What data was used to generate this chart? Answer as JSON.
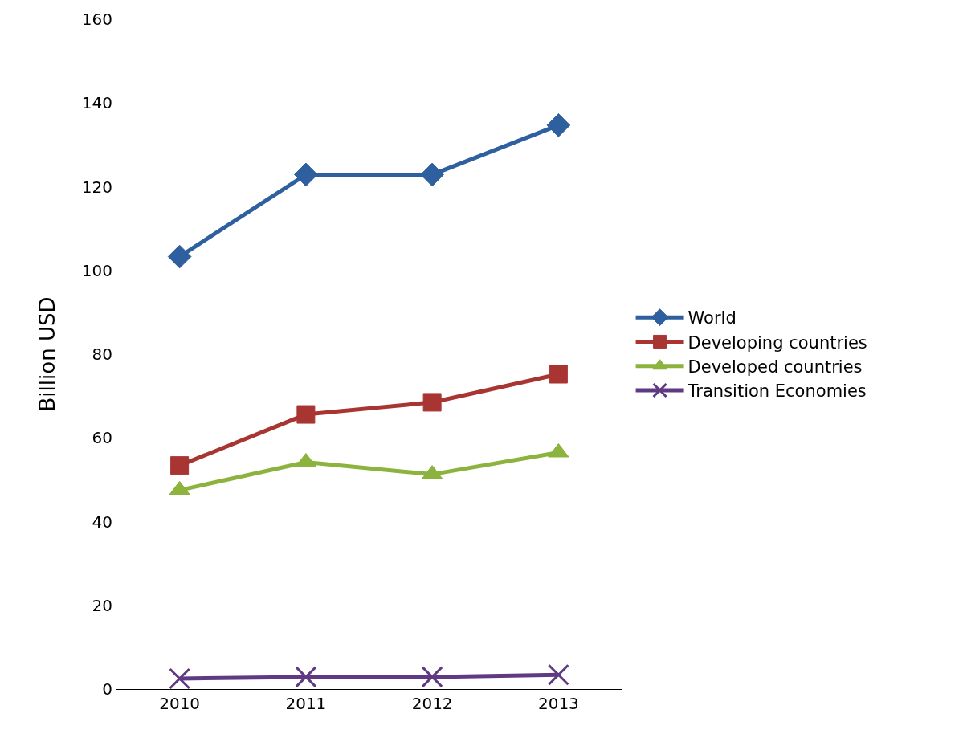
{
  "chart_data": {
    "type": "line",
    "ylabel": "Billion USD",
    "categories": [
      "2010",
      "2011",
      "2012",
      "2013"
    ],
    "series": [
      {
        "name": "World",
        "color": "#2e5f9e",
        "marker": "diamond",
        "values": [
          103.3,
          122.9,
          122.9,
          134.7
        ]
      },
      {
        "name": "Developing countries",
        "color": "#a93532",
        "marker": "square",
        "values": [
          53.4,
          65.6,
          68.5,
          75.2
        ]
      },
      {
        "name": "Developed countries",
        "color": "#8cb33e",
        "marker": "triangle",
        "values": [
          47.5,
          54.2,
          51.3,
          56.5
        ]
      },
      {
        "name": "Transition Economies",
        "color": "#5f3a82",
        "marker": "cross",
        "values": [
          2.5,
          2.9,
          2.9,
          3.4
        ]
      }
    ],
    "ylim": [
      0,
      160
    ],
    "yticks": [
      0,
      20,
      40,
      60,
      80,
      100,
      120,
      140,
      160
    ],
    "legend": "right",
    "line_style": "solid"
  }
}
